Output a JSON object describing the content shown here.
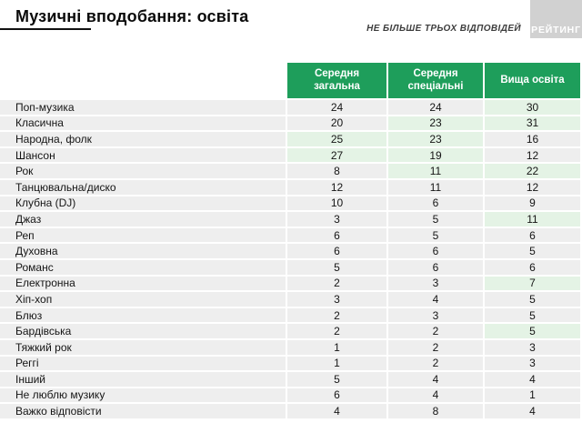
{
  "page": {
    "title": "Музичні вподобання: освіта",
    "subtitle": "НЕ БІЛЬШЕ ТРЬОХ ВІДПОВІДЕЙ",
    "logo": "РЕЙТИНГ"
  },
  "colors": {
    "header_green": "#1e9e5b",
    "highlight_green": "#e4f3e5",
    "cell_gray": "#eeeeee",
    "logo_gray": "#d1d1d1"
  },
  "chart_data": {
    "type": "table",
    "title": "Музичні вподобання: освіта",
    "note": "НЕ БІЛЬШЕ ТРЬОХ ВІДПОВІДЕЙ",
    "columns": [
      "Середня загальна",
      "Середня спеціальні",
      "Вища освіта"
    ],
    "rows": [
      {
        "label": "Поп-музика",
        "values": [
          24,
          24,
          30
        ],
        "highlight": [
          false,
          false,
          true
        ]
      },
      {
        "label": "Класична",
        "values": [
          20,
          23,
          31
        ],
        "highlight": [
          false,
          true,
          true
        ]
      },
      {
        "label": "Народна, фолк",
        "values": [
          25,
          23,
          16
        ],
        "highlight": [
          true,
          true,
          false
        ]
      },
      {
        "label": "Шансон",
        "values": [
          27,
          19,
          12
        ],
        "highlight": [
          true,
          true,
          false
        ]
      },
      {
        "label": "Рок",
        "values": [
          8,
          11,
          22
        ],
        "highlight": [
          false,
          true,
          true
        ]
      },
      {
        "label": "Танцювальна/диско",
        "values": [
          12,
          11,
          12
        ],
        "highlight": [
          false,
          false,
          false
        ]
      },
      {
        "label": "Клубна (DJ)",
        "values": [
          10,
          6,
          9
        ],
        "highlight": [
          false,
          false,
          false
        ]
      },
      {
        "label": "Джаз",
        "values": [
          3,
          5,
          11
        ],
        "highlight": [
          false,
          false,
          true
        ]
      },
      {
        "label": "Реп",
        "values": [
          6,
          5,
          6
        ],
        "highlight": [
          false,
          false,
          false
        ]
      },
      {
        "label": "Духовна",
        "values": [
          6,
          6,
          5
        ],
        "highlight": [
          false,
          false,
          false
        ]
      },
      {
        "label": "Романс",
        "values": [
          5,
          6,
          6
        ],
        "highlight": [
          false,
          false,
          false
        ]
      },
      {
        "label": "Електронна",
        "values": [
          2,
          3,
          7
        ],
        "highlight": [
          false,
          false,
          true
        ]
      },
      {
        "label": "Хіп-хоп",
        "values": [
          3,
          4,
          5
        ],
        "highlight": [
          false,
          false,
          false
        ]
      },
      {
        "label": "Блюз",
        "values": [
          2,
          3,
          5
        ],
        "highlight": [
          false,
          false,
          false
        ]
      },
      {
        "label": "Бардівська",
        "values": [
          2,
          2,
          5
        ],
        "highlight": [
          false,
          false,
          true
        ]
      },
      {
        "label": "Тяжкий рок",
        "values": [
          1,
          2,
          3
        ],
        "highlight": [
          false,
          false,
          false
        ]
      },
      {
        "label": "Реггі",
        "values": [
          1,
          2,
          3
        ],
        "highlight": [
          false,
          false,
          false
        ]
      },
      {
        "label": "Інший",
        "values": [
          5,
          4,
          4
        ],
        "highlight": [
          false,
          false,
          false
        ]
      },
      {
        "label": "Не люблю музику",
        "values": [
          6,
          4,
          1
        ],
        "highlight": [
          false,
          false,
          false
        ]
      },
      {
        "label": "Важко відповісти",
        "values": [
          4,
          8,
          4
        ],
        "highlight": [
          false,
          false,
          false
        ]
      }
    ]
  }
}
